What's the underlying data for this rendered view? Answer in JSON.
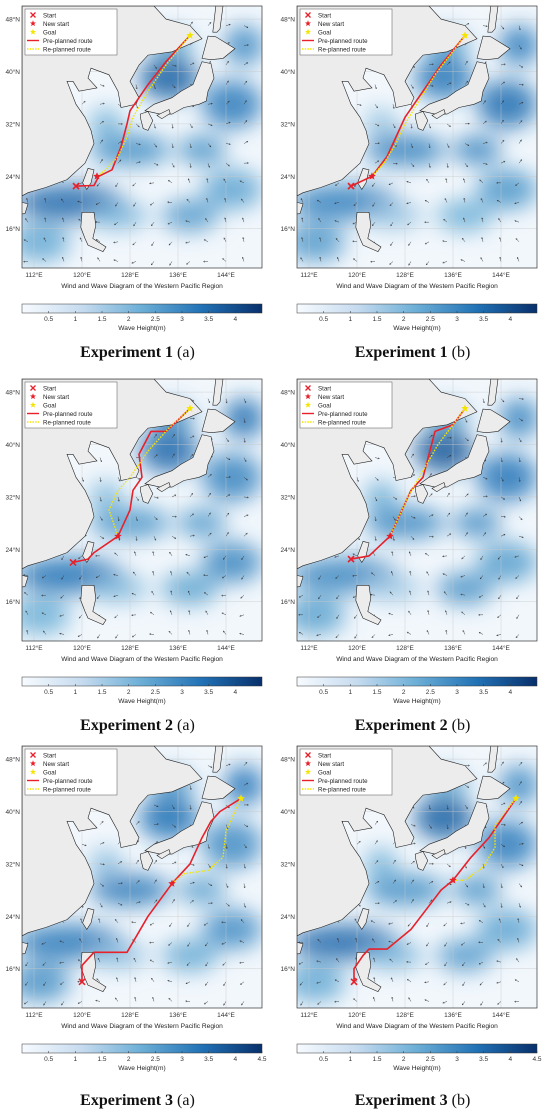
{
  "figure": {
    "panels": [
      {
        "id": "1a",
        "caption_main": "Experiment 1",
        "caption_suffix": "(a)",
        "map_title": "Wind and Wave Diagram of the Western Pacific Region",
        "colorbar_label": "Wave Height(m)",
        "colorbar_ticks": [
          "0.5",
          "1",
          "1.5",
          "2",
          "2.5",
          "3",
          "3.5",
          "4"
        ],
        "colorbar_max": 4.5,
        "lat_ticks": [
          "48°N",
          "40°N",
          "32°N",
          "24°N",
          "16°N"
        ],
        "lon_ticks": [
          "112°E",
          "120°E",
          "128°E",
          "136°E",
          "144°E"
        ],
        "legend": [
          "Start",
          "New start",
          "Goal",
          "Pre-planned route",
          "Re-planned route"
        ],
        "start": [
          119,
          22.5
        ],
        "new_start": [
          122.5,
          24
        ],
        "goal": [
          138,
          45.5
        ],
        "pre_route": [
          [
            119,
            22.5
          ],
          [
            122,
            22.6
          ],
          [
            122.8,
            24
          ],
          [
            125,
            25
          ],
          [
            126.5,
            28.5
          ],
          [
            127.5,
            32
          ],
          [
            128,
            34
          ],
          [
            131,
            38
          ],
          [
            134,
            41.5
          ],
          [
            138,
            45.5
          ]
        ],
        "re_route": [
          [
            122.5,
            24
          ],
          [
            124,
            25
          ],
          [
            126,
            27
          ],
          [
            127.5,
            30
          ],
          [
            128.5,
            33
          ],
          [
            131,
            37
          ],
          [
            134,
            41
          ],
          [
            138,
            45.5
          ]
        ]
      },
      {
        "id": "1b",
        "caption_main": "Experiment 1",
        "caption_suffix": "(b)",
        "map_title": "Wind and Wave Diagram of the Western Pacific Region",
        "colorbar_label": "Wave Height(m)",
        "colorbar_ticks": [
          "0.5",
          "1",
          "1.5",
          "2",
          "2.5",
          "3",
          "3.5",
          "4"
        ],
        "colorbar_max": 4.5,
        "lat_ticks": [
          "48°N",
          "40°N",
          "32°N",
          "24°N",
          "16°N"
        ],
        "lon_ticks": [
          "112°E",
          "120°E",
          "128°E",
          "136°E",
          "144°E"
        ],
        "legend": [
          "Start",
          "New start",
          "Goal",
          "Pre-planned route",
          "Re-planned route"
        ],
        "start": [
          119,
          22.5
        ],
        "new_start": [
          122.5,
          24
        ],
        "goal": [
          138,
          45.5
        ],
        "pre_route": [
          [
            119,
            22.5
          ],
          [
            122.5,
            24
          ],
          [
            125,
            27
          ],
          [
            126.5,
            30
          ],
          [
            128,
            33
          ],
          [
            131,
            37
          ],
          [
            134,
            41
          ],
          [
            138,
            45.5
          ]
        ],
        "re_route": [
          [
            122.5,
            24
          ],
          [
            124.5,
            26
          ],
          [
            126.5,
            29
          ],
          [
            128,
            32
          ],
          [
            130,
            35
          ],
          [
            133,
            39.5
          ],
          [
            138,
            45.5
          ]
        ]
      },
      {
        "id": "2a",
        "caption_main": "Experiment 2",
        "caption_suffix": "(a)",
        "map_title": "Wind and Wave Diagram of the Western Pacific Region",
        "colorbar_label": "Wave Height(m)",
        "colorbar_ticks": [
          "0.5",
          "1",
          "1.5",
          "2",
          "2.5",
          "3",
          "3.5",
          "4"
        ],
        "colorbar_max": 4.5,
        "lat_ticks": [
          "48°N",
          "40°N",
          "32°N",
          "24°N",
          "16°N"
        ],
        "lon_ticks": [
          "112°E",
          "120°E",
          "128°E",
          "136°E",
          "144°E"
        ],
        "legend": [
          "Start",
          "New start",
          "Goal",
          "Pre-planned route",
          "Re-planned route"
        ],
        "start": [
          118.5,
          22
        ],
        "new_start": [
          126,
          26
        ],
        "goal": [
          138,
          45.5
        ],
        "pre_route": [
          [
            118.5,
            22
          ],
          [
            121,
            22.5
          ],
          [
            122,
            23.5
          ],
          [
            126,
            26
          ],
          [
            128,
            30
          ],
          [
            128.5,
            33
          ],
          [
            130,
            35
          ],
          [
            129.5,
            38.5
          ],
          [
            131.5,
            42
          ],
          [
            134,
            42
          ],
          [
            138,
            45.5
          ]
        ],
        "re_route": [
          [
            126,
            26
          ],
          [
            124.5,
            30
          ],
          [
            126,
            33
          ],
          [
            128,
            35
          ],
          [
            131,
            39
          ],
          [
            134.5,
            42.5
          ],
          [
            138,
            45.5
          ]
        ]
      },
      {
        "id": "2b",
        "caption_main": "Experiment 2",
        "caption_suffix": "(b)",
        "map_title": "Wind and Wave Diagram of the Western Pacific Region",
        "colorbar_label": "Wave Height(m)",
        "colorbar_ticks": [
          "0.5",
          "1",
          "1.5",
          "2",
          "2.5",
          "3",
          "3.5",
          "4"
        ],
        "colorbar_max": 4.5,
        "lat_ticks": [
          "48°N",
          "40°N",
          "32°N",
          "24°N",
          "16°N"
        ],
        "lon_ticks": [
          "112°E",
          "120°E",
          "128°E",
          "136°E",
          "144°E"
        ],
        "legend": [
          "Start",
          "New start",
          "Goal",
          "Pre-planned route",
          "Re-planned route"
        ],
        "start": [
          119,
          22.5
        ],
        "new_start": [
          125.5,
          26
        ],
        "goal": [
          138,
          45.5
        ],
        "pre_route": [
          [
            119,
            22.5
          ],
          [
            122,
            23
          ],
          [
            125.5,
            26
          ],
          [
            127.5,
            30
          ],
          [
            129,
            33
          ],
          [
            131,
            35
          ],
          [
            132,
            38.5
          ],
          [
            133,
            42
          ],
          [
            136,
            43
          ],
          [
            138,
            45.5
          ]
        ],
        "re_route": [
          [
            125.5,
            26
          ],
          [
            127,
            29
          ],
          [
            128.5,
            32
          ],
          [
            131,
            36
          ],
          [
            133.5,
            40
          ],
          [
            136,
            43
          ],
          [
            138,
            45.5
          ]
        ]
      },
      {
        "id": "3a",
        "caption_main": "Experiment 3",
        "caption_suffix": "(a)",
        "map_title": "Wind and Wave Diagram of the Western Pacific Region",
        "colorbar_label": "Wave Height(m)",
        "colorbar_ticks": [
          "0.5",
          "1",
          "1.5",
          "2",
          "2.5",
          "3",
          "3.5",
          "4",
          "4.5"
        ],
        "colorbar_max": 4.5,
        "lat_ticks": [
          "48°N",
          "40°N",
          "32°N",
          "24°N",
          "16°N"
        ],
        "lon_ticks": [
          "112°E",
          "120°E",
          "128°E",
          "136°E",
          "144°E"
        ],
        "legend": [
          "Start",
          "New start",
          "Goal",
          "Pre-planned route",
          "Re-planned route"
        ],
        "start": [
          120,
          14
        ],
        "new_start": [
          135,
          29
        ],
        "goal": [
          146.5,
          42
        ],
        "pre_route": [
          [
            120,
            14
          ],
          [
            120,
            16.5
          ],
          [
            122,
            18.5
          ],
          [
            127.5,
            18.5
          ],
          [
            131,
            24
          ],
          [
            135,
            29
          ],
          [
            138,
            32
          ],
          [
            140,
            36
          ],
          [
            141.5,
            38.5
          ],
          [
            143,
            40
          ],
          [
            146.5,
            42
          ]
        ],
        "re_route": [
          [
            135,
            29
          ],
          [
            137,
            30.5
          ],
          [
            141,
            31
          ],
          [
            143.5,
            33
          ],
          [
            144,
            37
          ],
          [
            146.5,
            42
          ]
        ]
      },
      {
        "id": "3b",
        "caption_main": "Experiment 3",
        "caption_suffix": "(b)",
        "map_title": "Wind and Wave Diagram of the Western Pacific Region",
        "colorbar_label": "Wave Height(m)",
        "colorbar_ticks": [
          "0.5",
          "1",
          "1.5",
          "2",
          "2.5",
          "3",
          "3.5",
          "4",
          "4.5"
        ],
        "colorbar_max": 4.5,
        "lat_ticks": [
          "48°N",
          "40°N",
          "32°N",
          "24°N",
          "16°N"
        ],
        "lon_ticks": [
          "112°E",
          "120°E",
          "128°E",
          "136°E",
          "144°E"
        ],
        "legend": [
          "Start",
          "New start",
          "Goal",
          "Pre-planned route",
          "Re-planned route"
        ],
        "start": [
          119.5,
          14
        ],
        "new_start": [
          136,
          29.5
        ],
        "goal": [
          146.5,
          42
        ],
        "pre_route": [
          [
            119.5,
            14
          ],
          [
            119.5,
            16
          ],
          [
            121,
            18
          ],
          [
            122,
            19
          ],
          [
            125,
            19
          ],
          [
            129,
            22
          ],
          [
            131.5,
            25
          ],
          [
            134,
            28
          ],
          [
            136,
            29.5
          ],
          [
            139,
            33
          ],
          [
            142,
            36
          ],
          [
            145,
            40
          ],
          [
            146.5,
            42
          ]
        ],
        "re_route": [
          [
            136,
            29.5
          ],
          [
            138,
            29.5
          ],
          [
            141,
            31.5
          ],
          [
            143,
            34.5
          ],
          [
            143,
            38
          ],
          [
            146.5,
            42
          ]
        ]
      }
    ]
  }
}
